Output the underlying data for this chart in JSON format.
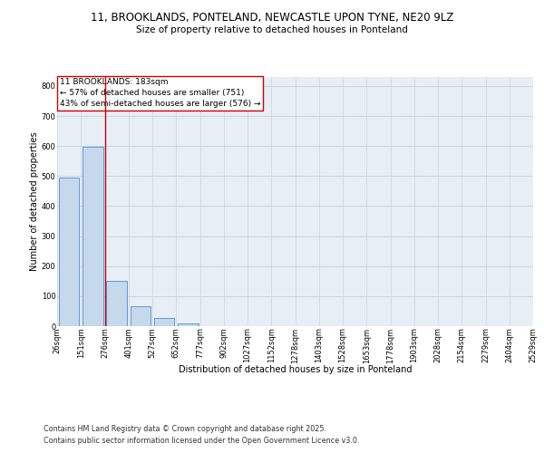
{
  "title_line1": "11, BROOKLANDS, PONTELAND, NEWCASTLE UPON TYNE, NE20 9LZ",
  "title_line2": "Size of property relative to detached houses in Ponteland",
  "xlabel": "Distribution of detached houses by size in Ponteland",
  "ylabel": "Number of detached properties",
  "bar_values": [
    495,
    597,
    150,
    65,
    27,
    8,
    0,
    0,
    0,
    0,
    0,
    0,
    0,
    0,
    0,
    0,
    0,
    0,
    0,
    0
  ],
  "bin_labels": [
    "26sqm",
    "151sqm",
    "276sqm",
    "401sqm",
    "527sqm",
    "652sqm",
    "777sqm",
    "902sqm",
    "1027sqm",
    "1152sqm",
    "1278sqm",
    "1403sqm",
    "1528sqm",
    "1653sqm",
    "1778sqm",
    "1903sqm",
    "2028sqm",
    "2154sqm",
    "2279sqm",
    "2404sqm",
    "2529sqm"
  ],
  "bar_color": "#c5d8ec",
  "bar_edge_color": "#5b9bd5",
  "grid_color": "#c8d4e4",
  "background_color": "#e8eef6",
  "vline_x": 1.5,
  "vline_color": "#cc0000",
  "annotation_text": "11 BROOKLANDS: 183sqm\n← 57% of detached houses are smaller (751)\n43% of semi-detached houses are larger (576) →",
  "annotation_box_color": "white",
  "annotation_box_edge": "#cc0000",
  "ylim": [
    0,
    830
  ],
  "yticks": [
    0,
    100,
    200,
    300,
    400,
    500,
    600,
    700,
    800
  ],
  "footer_line1": "Contains HM Land Registry data © Crown copyright and database right 2025.",
  "footer_line2": "Contains public sector information licensed under the Open Government Licence v3.0.",
  "title_fontsize": 8.5,
  "subtitle_fontsize": 7.5,
  "label_fontsize": 7,
  "tick_fontsize": 6,
  "annotation_fontsize": 6.5,
  "footer_fontsize": 5.8
}
